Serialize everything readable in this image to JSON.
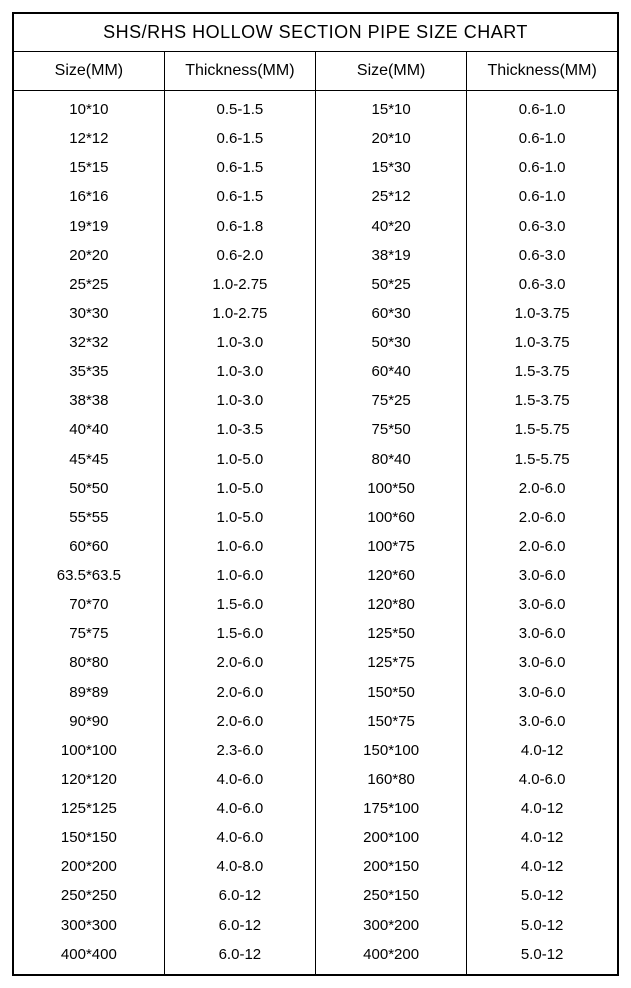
{
  "title": "SHS/RHS HOLLOW SECTION PIPE SIZE CHART",
  "columns": [
    "Size(MM)",
    "Thickness(MM)",
    "Size(MM)",
    "Thickness(MM)"
  ],
  "rows": [
    [
      "10*10",
      "0.5-1.5",
      "15*10",
      "0.6-1.0"
    ],
    [
      "12*12",
      "0.6-1.5",
      "20*10",
      "0.6-1.0"
    ],
    [
      "15*15",
      "0.6-1.5",
      "15*30",
      "0.6-1.0"
    ],
    [
      "16*16",
      "0.6-1.5",
      "25*12",
      "0.6-1.0"
    ],
    [
      "19*19",
      "0.6-1.8",
      "40*20",
      "0.6-3.0"
    ],
    [
      "20*20",
      "0.6-2.0",
      "38*19",
      "0.6-3.0"
    ],
    [
      "25*25",
      "1.0-2.75",
      "50*25",
      "0.6-3.0"
    ],
    [
      "30*30",
      "1.0-2.75",
      "60*30",
      "1.0-3.75"
    ],
    [
      "32*32",
      "1.0-3.0",
      "50*30",
      "1.0-3.75"
    ],
    [
      "35*35",
      "1.0-3.0",
      "60*40",
      "1.5-3.75"
    ],
    [
      "38*38",
      "1.0-3.0",
      "75*25",
      "1.5-3.75"
    ],
    [
      "40*40",
      "1.0-3.5",
      "75*50",
      "1.5-5.75"
    ],
    [
      "45*45",
      "1.0-5.0",
      "80*40",
      "1.5-5.75"
    ],
    [
      "50*50",
      "1.0-5.0",
      "100*50",
      "2.0-6.0"
    ],
    [
      "55*55",
      "1.0-5.0",
      "100*60",
      "2.0-6.0"
    ],
    [
      "60*60",
      "1.0-6.0",
      "100*75",
      "2.0-6.0"
    ],
    [
      "63.5*63.5",
      "1.0-6.0",
      "120*60",
      "3.0-6.0"
    ],
    [
      "70*70",
      "1.5-6.0",
      "120*80",
      "3.0-6.0"
    ],
    [
      "75*75",
      "1.5-6.0",
      "125*50",
      "3.0-6.0"
    ],
    [
      "80*80",
      "2.0-6.0",
      "125*75",
      "3.0-6.0"
    ],
    [
      "89*89",
      "2.0-6.0",
      "150*50",
      "3.0-6.0"
    ],
    [
      "90*90",
      "2.0-6.0",
      "150*75",
      "3.0-6.0"
    ],
    [
      "100*100",
      "2.3-6.0",
      "150*100",
      "4.0-12"
    ],
    [
      "120*120",
      "4.0-6.0",
      "160*80",
      "4.0-6.0"
    ],
    [
      "125*125",
      "4.0-6.0",
      "175*100",
      "4.0-12"
    ],
    [
      "150*150",
      "4.0-6.0",
      "200*100",
      "4.0-12"
    ],
    [
      "200*200",
      "4.0-8.0",
      "200*150",
      "4.0-12"
    ],
    [
      "250*250",
      "6.0-12",
      "250*150",
      "5.0-12"
    ],
    [
      "300*300",
      "6.0-12",
      "300*200",
      "5.0-12"
    ],
    [
      "400*400",
      "6.0-12",
      "400*200",
      "5.0-12"
    ]
  ],
  "style": {
    "type": "table",
    "background_color": "#ffffff",
    "border_color": "#000000",
    "text_color": "#000000",
    "title_fontsize": 18,
    "header_fontsize": 16,
    "cell_fontsize": 15,
    "font_family": "Arial",
    "column_widths_pct": [
      25,
      25,
      25,
      25
    ],
    "outer_border_width": 2,
    "inner_border_width": 1
  }
}
